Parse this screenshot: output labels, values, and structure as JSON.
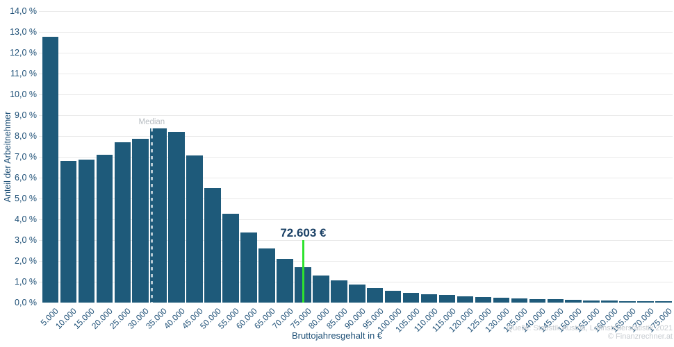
{
  "chart_data": {
    "type": "bar",
    "title": "",
    "xlabel": "Bruttojahresgehalt in €",
    "ylabel": "Anteil der Arbeitnehmer",
    "categories": [
      "5.000",
      "10.000",
      "15.000",
      "20.000",
      "25.000",
      "30.000",
      "35.000",
      "40.000",
      "45.000",
      "50.000",
      "55.000",
      "60.000",
      "65.000",
      "70.000",
      "75.000",
      "80.000",
      "85.000",
      "90.000",
      "95.000",
      "100.000",
      "105.000",
      "110.000",
      "115.000",
      "120.000",
      "125.000",
      "130.000",
      "135.000",
      "140.000",
      "145.000",
      "150.000",
      "155.000",
      "160.000",
      "165.000",
      "170.000",
      "175.000"
    ],
    "values": [
      12.75,
      6.8,
      6.85,
      7.1,
      7.7,
      7.85,
      8.35,
      8.2,
      7.05,
      5.5,
      4.25,
      3.35,
      2.6,
      2.1,
      1.7,
      1.3,
      1.05,
      0.85,
      0.7,
      0.55,
      0.45,
      0.4,
      0.35,
      0.3,
      0.27,
      0.23,
      0.2,
      0.17,
      0.15,
      0.13,
      0.11,
      0.1,
      0.08,
      0.06,
      0.05
    ],
    "y_tick_labels": [
      "0,0 %",
      "1,0 %",
      "2,0 %",
      "3,0 %",
      "4,0 %",
      "5,0 %",
      "6,0 %",
      "7,0 %",
      "8,0 %",
      "9,0 %",
      "10,0 %",
      "11,0 %",
      "12,0 %",
      "13,0 %",
      "14,0 %"
    ],
    "ylim": [
      0,
      14
    ],
    "bin_size_value": 5000,
    "grid": true,
    "legend_position": "none",
    "bar_color": "#1e5a7a",
    "annotations": {
      "median": {
        "label": "Median",
        "x_value": 30600
      },
      "salary_marker": {
        "label": "72.603 €",
        "x_value": 72603,
        "line_color": "#2ee32e",
        "top_value": 3.0
      }
    }
  },
  "source": {
    "line1": "Quelle: Statistik Austria, Lohnsteuerstatistik 2021",
    "line2": "© Finanzrechner.at"
  }
}
